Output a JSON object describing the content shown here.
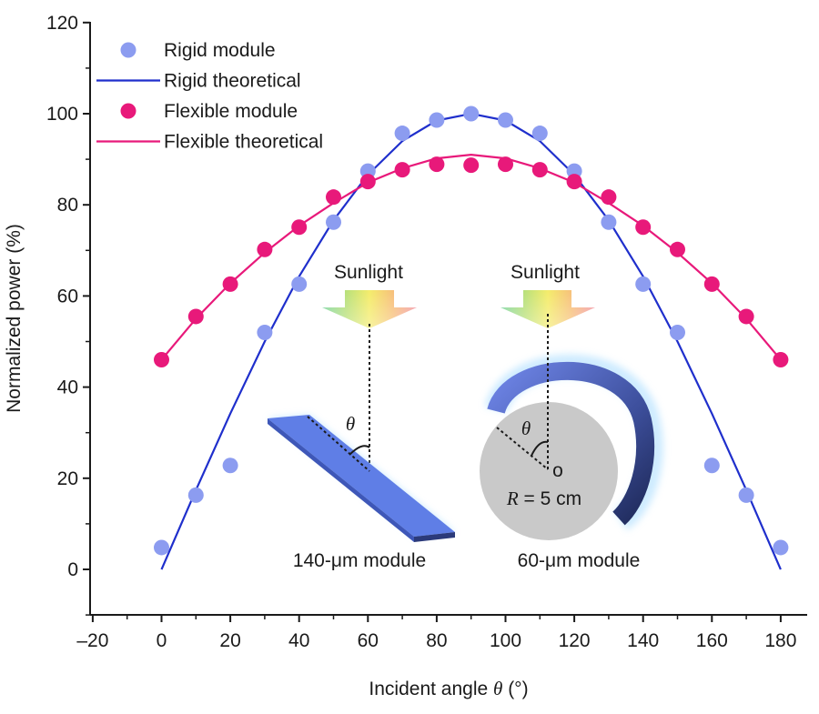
{
  "chart_data": {
    "type": "scatter",
    "xlabel": {
      "prefix": "Incident angle ",
      "symbol": "θ",
      "suffix": " (°)"
    },
    "ylabel": "Normalized power (%)",
    "xlim": [
      -20,
      190
    ],
    "ylim": [
      -10,
      120
    ],
    "xticks": [
      -20,
      0,
      20,
      40,
      60,
      80,
      100,
      120,
      140,
      160,
      180
    ],
    "xtick_labels": [
      "–20",
      "0",
      "20",
      "40",
      "60",
      "80",
      "100",
      "120",
      "140",
      "160",
      "180"
    ],
    "yticks": [
      0,
      20,
      40,
      60,
      80,
      100,
      120
    ],
    "ytick_labels": [
      "0",
      "20",
      "40",
      "60",
      "80",
      "100",
      "120"
    ],
    "grid": false,
    "legend_position": "top-left",
    "series": [
      {
        "name": "Rigid module",
        "kind": "points",
        "color": "#8c9cf0",
        "x": [
          0,
          10,
          20,
          30,
          40,
          50,
          60,
          70,
          80,
          90,
          100,
          110,
          120,
          130,
          140,
          150,
          160,
          170,
          180
        ],
        "y": [
          4.8,
          16.3,
          22.8,
          52,
          62.6,
          76.2,
          87.4,
          95.7,
          98.6,
          100,
          98.6,
          95.7,
          87.4,
          76.2,
          62.6,
          52,
          22.8,
          16.3,
          4.8
        ]
      },
      {
        "name": "Rigid theoretical",
        "kind": "line",
        "color": "#1f2fcc",
        "x": [
          0,
          10,
          20,
          30,
          40,
          50,
          60,
          70,
          80,
          90,
          100,
          110,
          120,
          130,
          140,
          150,
          160,
          170,
          180
        ],
        "y": [
          0,
          17.4,
          34.2,
          50,
          64.3,
          76.6,
          86.6,
          94,
          98.5,
          100,
          98.5,
          94,
          86.6,
          76.6,
          64.3,
          50,
          34.2,
          17.4,
          0
        ]
      },
      {
        "name": "Flexible module",
        "kind": "points",
        "color": "#e8197a",
        "x": [
          0,
          10,
          20,
          30,
          40,
          50,
          60,
          70,
          80,
          90,
          100,
          110,
          120,
          130,
          140,
          150,
          160,
          170,
          180
        ],
        "y": [
          46,
          55.5,
          62.6,
          70.2,
          75.1,
          81.7,
          85.1,
          87.7,
          88.9,
          88.7,
          88.9,
          87.7,
          85.1,
          81.7,
          75.1,
          70.2,
          62.6,
          55.5,
          46
        ]
      },
      {
        "name": "Flexible theoretical",
        "kind": "line",
        "color": "#e8197a",
        "x": [
          0,
          10,
          20,
          30,
          40,
          50,
          60,
          70,
          80,
          90,
          100,
          110,
          120,
          130,
          140,
          150,
          160,
          170,
          180
        ],
        "y": [
          46,
          55,
          62.8,
          69.5,
          75.4,
          80.4,
          84.9,
          88,
          90.2,
          91,
          90.2,
          88,
          84.9,
          80.4,
          75.4,
          69.5,
          62.8,
          55,
          46
        ]
      }
    ],
    "annotations": {
      "sunlight_label": "Sunlight",
      "angle_symbol": "θ",
      "left_caption": "140-μm module",
      "right_caption": "60-μm module",
      "center_marker": "o",
      "radius_label": {
        "symbol": "R",
        "text": " = 5 cm"
      }
    }
  }
}
